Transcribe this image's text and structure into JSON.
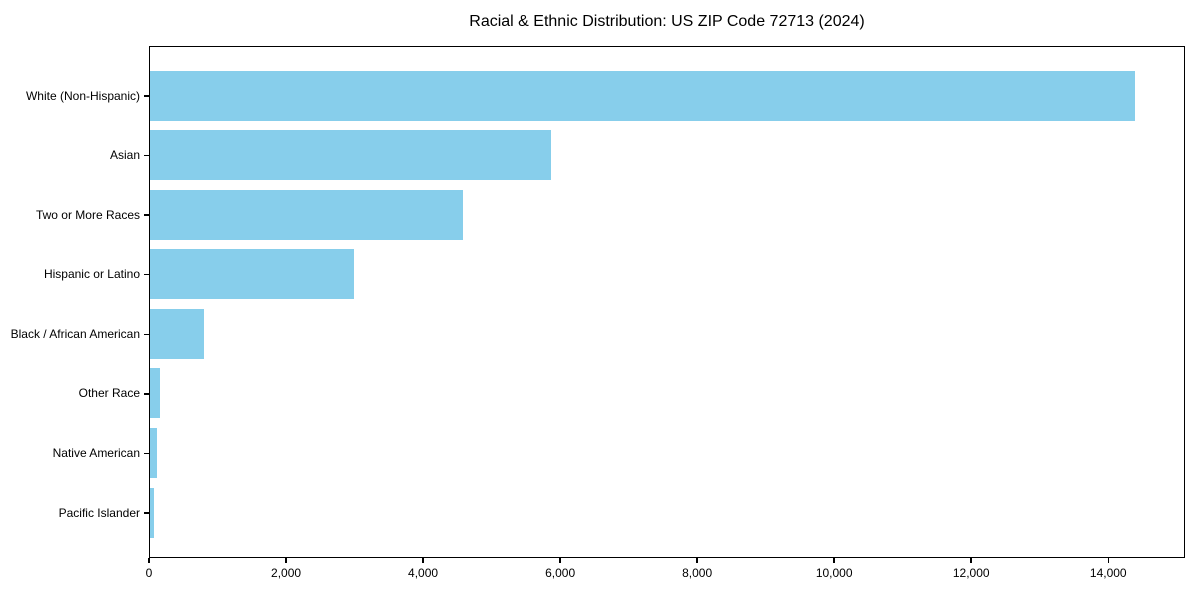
{
  "chart_data": {
    "type": "bar",
    "orientation": "horizontal",
    "title": "Racial & Ethnic Distribution: US ZIP Code 72713 (2024)",
    "categories": [
      "White (Non-Hispanic)",
      "Asian",
      "Two or More Races",
      "Hispanic or Latino",
      "Black / African American",
      "Other Race",
      "Native American",
      "Pacific Islander"
    ],
    "values": [
      14420,
      5870,
      4580,
      2980,
      790,
      150,
      105,
      60
    ],
    "xlabel": "",
    "ylabel": "",
    "xlim": [
      0,
      15120
    ],
    "x_ticks": [
      0,
      2000,
      4000,
      6000,
      8000,
      10000,
      12000,
      14000
    ],
    "x_tick_labels": [
      "0",
      "2,000",
      "4,000",
      "6,000",
      "8,000",
      "10,000",
      "12,000",
      "14,000"
    ],
    "bar_color": "#87CEEB",
    "grid": false,
    "legend": "none"
  },
  "colors": {
    "bar": "#87CEEB",
    "axis": "#000000",
    "text": "#000000",
    "background": "#ffffff"
  }
}
